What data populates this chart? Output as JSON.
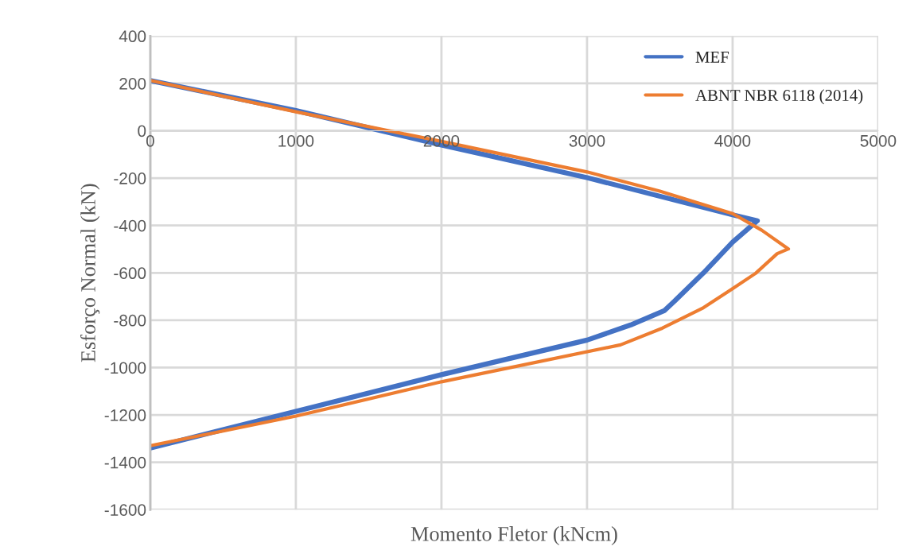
{
  "chart_data": {
    "type": "line",
    "xlabel": "Momento Fletor (kNcm)",
    "ylabel": "Esforço Normal (kN)",
    "xlim": [
      0,
      5000
    ],
    "xticks": [
      0,
      1000,
      2000,
      3000,
      4000,
      5000
    ],
    "ylim": [
      -1600,
      400
    ],
    "yticks": [
      -1600,
      -1400,
      -1200,
      -1000,
      -800,
      -600,
      -400,
      -200,
      0,
      200,
      400
    ],
    "grid": true,
    "legend": "top right",
    "marker": "none",
    "line_style": "solid",
    "series": [
      {
        "name": "MEF",
        "color": "#4472c4",
        "x": [
          0,
          1000,
          2000,
          3000,
          4000,
          4170,
          4000,
          3800,
          3600,
          3530,
          3300,
          3000,
          2000,
          1000,
          0
        ],
        "values": [
          212,
          85,
          -60,
          -198,
          -355,
          -380,
          -470,
          -600,
          -720,
          -760,
          -820,
          -884,
          -1030,
          -1185,
          -1340
        ]
      },
      {
        "name": "ABNT NBR 6118 (2014)",
        "color": "#ed7d31",
        "x": [
          0,
          1000,
          2000,
          3000,
          3500,
          4000,
          4200,
          4383,
          4306,
          4158,
          3995,
          3792,
          3519,
          3230,
          2000,
          1000,
          0
        ],
        "values": [
          212,
          80,
          -45,
          -174,
          -255,
          -350,
          -420,
          -499,
          -519,
          -602,
          -669,
          -750,
          -833,
          -904,
          -1060,
          -1205,
          -1330
        ]
      }
    ]
  }
}
